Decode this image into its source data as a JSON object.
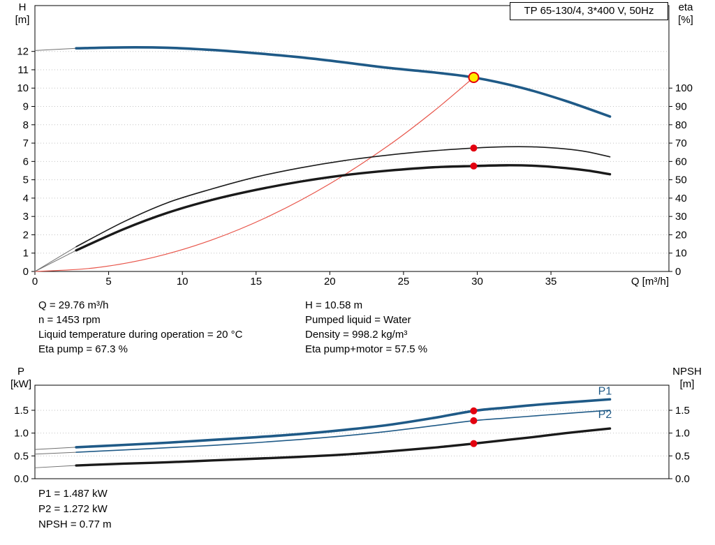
{
  "title_box": {
    "label": "TP 65-130/4, 3*400 V, 50Hz"
  },
  "colors": {
    "blue": "#1f5a87",
    "black_curve": "#1a1a1a",
    "red_curve": "#e8554a",
    "red_dot": "#e3000f",
    "yellow_point": "#ffed00",
    "grid": "#c2c2c2",
    "lead": "#707070"
  },
  "info_top_left": [
    "Q = 29.76 m³/h",
    "n = 1453 rpm",
    "Liquid temperature during operation = 20 °C",
    "Eta pump = 67.3 %"
  ],
  "info_top_right": [
    "H = 10.58 m",
    "Pumped liquid = Water",
    "Density = 998.2 kg/m³",
    "Eta pump+motor = 57.5 %"
  ],
  "info_bottom": [
    "P1 = 1.487 kW",
    "P2 = 1.272 kW",
    "NPSH = 0.77 m"
  ],
  "chart_data": [
    {
      "type": "line",
      "name": "qh-efficiency-chart",
      "x_axis": {
        "label": "Q [m³/h]",
        "min": 0,
        "max": 43,
        "ticks": [
          0,
          5,
          10,
          15,
          20,
          25,
          30,
          35
        ],
        "show_ticks": true
      },
      "y_left": {
        "label": "H\n[m]",
        "min": 0,
        "max": 14.5,
        "ticks": [
          0,
          1,
          2,
          3,
          4,
          5,
          6,
          7,
          8,
          9,
          10,
          11,
          12
        ],
        "decimals": 0
      },
      "y_right": {
        "label": "eta\n[%]",
        "min": 0,
        "max": 145,
        "ticks": [
          0,
          10,
          20,
          30,
          40,
          50,
          60,
          70,
          80,
          90,
          100
        ],
        "decimals": 0
      },
      "series": [
        {
          "name": "system-curve",
          "axis": "left",
          "color": "red_curve",
          "width": 1.2,
          "points": [
            [
              0,
              0
            ],
            [
              4,
              0.19
            ],
            [
              8,
              0.76
            ],
            [
              12,
              1.72
            ],
            [
              16,
              3.06
            ],
            [
              20,
              4.78
            ],
            [
              24,
              6.88
            ],
            [
              27,
              8.71
            ],
            [
              29.76,
              10.58
            ]
          ]
        },
        {
          "name": "eta-pump-curve",
          "axis": "right",
          "color": "black_curve",
          "width": 1.6,
          "lead": [
            [
              0,
              0
            ],
            [
              2.8,
              13.5
            ]
          ],
          "points": [
            [
              2.8,
              13.5
            ],
            [
              6,
              27
            ],
            [
              9,
              37.5
            ],
            [
              12,
              45
            ],
            [
              15,
              51.5
            ],
            [
              18,
              56.5
            ],
            [
              21,
              60.5
            ],
            [
              24,
              63.5
            ],
            [
              27,
              65.8
            ],
            [
              29.76,
              67.3
            ],
            [
              32,
              68
            ],
            [
              34,
              67.9
            ],
            [
              36,
              66.8
            ],
            [
              37.5,
              65.2
            ],
            [
              39,
              62.5
            ]
          ]
        },
        {
          "name": "eta-pump-motor-curve",
          "axis": "right",
          "color": "black_curve",
          "width": 3.4,
          "lead": [
            [
              0,
              0
            ],
            [
              2.8,
              11.5
            ]
          ],
          "points": [
            [
              2.8,
              11.5
            ],
            [
              6,
              23
            ],
            [
              9,
              32
            ],
            [
              12,
              39
            ],
            [
              15,
              44.5
            ],
            [
              18,
              49
            ],
            [
              21,
              52.5
            ],
            [
              24,
              55
            ],
            [
              27,
              56.8
            ],
            [
              29.76,
              57.5
            ],
            [
              32,
              57.9
            ],
            [
              34,
              57.6
            ],
            [
              36,
              56.4
            ],
            [
              37.5,
              55
            ],
            [
              39,
              53
            ]
          ]
        },
        {
          "name": "qh-curve",
          "axis": "left",
          "color": "blue",
          "width": 3.6,
          "lead": [
            [
              0,
              12.05
            ],
            [
              2.8,
              12.17
            ]
          ],
          "points": [
            [
              2.8,
              12.17
            ],
            [
              6,
              12.22
            ],
            [
              9,
              12.2
            ],
            [
              12,
              12.08
            ],
            [
              15,
              11.9
            ],
            [
              18,
              11.68
            ],
            [
              21,
              11.4
            ],
            [
              24,
              11.1
            ],
            [
              27,
              10.86
            ],
            [
              29.76,
              10.58
            ],
            [
              33,
              10.02
            ],
            [
              36,
              9.3
            ],
            [
              39,
              8.45
            ]
          ]
        }
      ],
      "markers": [
        {
          "name": "duty-point",
          "x": 29.76,
          "y": 10.58,
          "axis": "left",
          "kind": "operating"
        },
        {
          "name": "eta-pump-point",
          "x": 29.76,
          "y": 67.3,
          "axis": "right",
          "kind": "dot"
        },
        {
          "name": "eta-pump-motor-point",
          "x": 29.76,
          "y": 57.5,
          "axis": "right",
          "kind": "dot"
        }
      ],
      "annotations": []
    },
    {
      "type": "line",
      "name": "power-npsh-chart",
      "x_axis": {
        "label": "",
        "min": 0,
        "max": 43,
        "ticks": [],
        "show_ticks": false
      },
      "y_left": {
        "label": "P\n[kW]",
        "min": 0,
        "max": 2.05,
        "ticks": [
          0,
          0.5,
          1,
          1.5
        ],
        "decimals": 1
      },
      "y_right": {
        "label": "NPSH\n[m]",
        "min": 0,
        "max": 2.05,
        "ticks": [
          0,
          0.5,
          1,
          1.5
        ],
        "decimals": 1
      },
      "series": [
        {
          "name": "p2-curve",
          "axis": "left",
          "color": "blue",
          "width": 1.6,
          "lead": [
            [
              0,
              0.54
            ],
            [
              2.8,
              0.58
            ]
          ],
          "points": [
            [
              2.8,
              0.58
            ],
            [
              6,
              0.63
            ],
            [
              9,
              0.68
            ],
            [
              12,
              0.73
            ],
            [
              15,
              0.79
            ],
            [
              18,
              0.86
            ],
            [
              21,
              0.94
            ],
            [
              24,
              1.04
            ],
            [
              27,
              1.16
            ],
            [
              29.76,
              1.272
            ],
            [
              32,
              1.33
            ],
            [
              34,
              1.38
            ],
            [
              36,
              1.43
            ],
            [
              39,
              1.5
            ]
          ]
        },
        {
          "name": "p1-curve",
          "axis": "left",
          "color": "blue",
          "width": 3.6,
          "lead": [
            [
              0,
              0.64
            ],
            [
              2.8,
              0.69
            ]
          ],
          "points": [
            [
              2.8,
              0.69
            ],
            [
              6,
              0.74
            ],
            [
              9,
              0.79
            ],
            [
              12,
              0.85
            ],
            [
              15,
              0.91
            ],
            [
              18,
              0.98
            ],
            [
              21,
              1.07
            ],
            [
              24,
              1.18
            ],
            [
              27,
              1.33
            ],
            [
              29.76,
              1.487
            ],
            [
              32,
              1.56
            ],
            [
              34,
              1.62
            ],
            [
              36,
              1.67
            ],
            [
              39,
              1.74
            ]
          ]
        },
        {
          "name": "npsh-curve",
          "axis": "right",
          "color": "black_curve",
          "width": 3.4,
          "lead": [
            [
              0,
              0.24
            ],
            [
              2.8,
              0.29
            ]
          ],
          "points": [
            [
              2.8,
              0.29
            ],
            [
              6,
              0.33
            ],
            [
              9,
              0.36
            ],
            [
              12,
              0.4
            ],
            [
              15,
              0.44
            ],
            [
              18,
              0.48
            ],
            [
              21,
              0.53
            ],
            [
              24,
              0.6
            ],
            [
              27,
              0.68
            ],
            [
              29.76,
              0.77
            ],
            [
              32,
              0.85
            ],
            [
              34,
              0.92
            ],
            [
              36,
              1.0
            ],
            [
              39,
              1.1
            ]
          ]
        }
      ],
      "markers": [
        {
          "name": "p1-point",
          "x": 29.76,
          "y": 1.487,
          "axis": "left",
          "kind": "dot"
        },
        {
          "name": "p2-point",
          "x": 29.76,
          "y": 1.272,
          "axis": "left",
          "kind": "dot"
        },
        {
          "name": "npsh-point",
          "x": 29.76,
          "y": 0.77,
          "axis": "right",
          "kind": "dot"
        }
      ],
      "annotations": [
        {
          "text": "P1",
          "x": 38.2,
          "y": 1.84,
          "color": "blue",
          "size": 16,
          "name": "p1-curve-label"
        },
        {
          "text": "P2",
          "x": 38.2,
          "y": 1.33,
          "color": "blue",
          "size": 16,
          "name": "p2-curve-label"
        }
      ]
    }
  ]
}
